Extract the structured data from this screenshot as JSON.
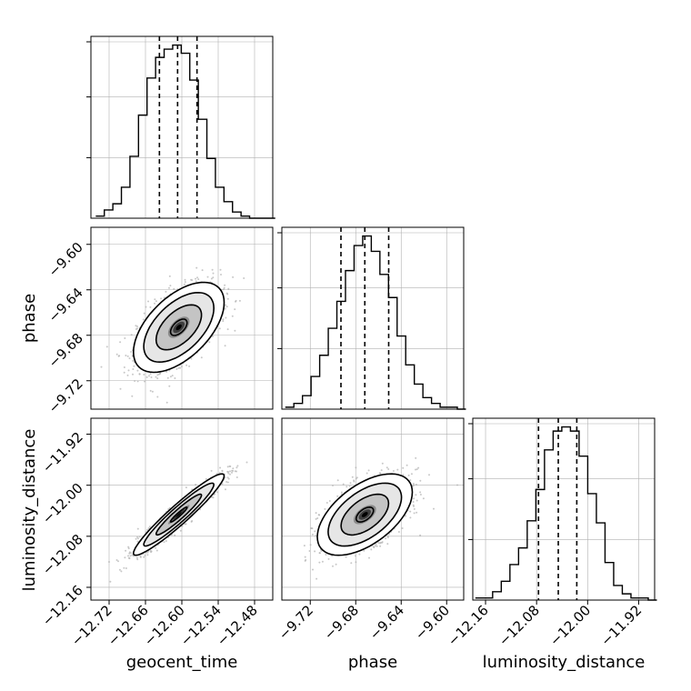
{
  "chart_data": {
    "type": "corner",
    "parameters": [
      "geocent_time",
      "phase",
      "luminosity_distance"
    ],
    "labels": {
      "geocent_time": "geocent_time",
      "phase": "phase",
      "luminosity_distance": "luminosity_distance"
    },
    "ranges": {
      "geocent_time": [
        -12.75,
        -12.45
      ],
      "phase": [
        -9.745,
        -9.585
      ],
      "luminosity_distance": [
        -12.18,
        -11.895
      ]
    },
    "ticks": {
      "geocent_time": [
        "−12.72",
        "−12.66",
        "−12.60",
        "−12.54",
        "−12.48"
      ],
      "phase": [
        "−9.72",
        "−9.68",
        "−9.64",
        "−9.60"
      ],
      "luminosity_distance": [
        "−12.16",
        "−12.08",
        "−12.00",
        "−11.92"
      ]
    },
    "tick_values": {
      "geocent_time": [
        -12.72,
        -12.66,
        -12.6,
        -12.54,
        -12.48
      ],
      "phase": [
        -9.72,
        -9.68,
        -9.64,
        -9.6
      ],
      "luminosity_distance": [
        -12.16,
        -12.08,
        -12.0,
        -11.92
      ]
    },
    "histograms": {
      "geocent_time": {
        "edges_start": -12.742,
        "bin_width": 0.0141,
        "counts": [
          1,
          4,
          7,
          15,
          30,
          50,
          68,
          78,
          82,
          84,
          80,
          67,
          48,
          29,
          15,
          8,
          3,
          1,
          0,
          0,
          0
        ]
      },
      "phase": {
        "edges_start": -9.742,
        "bin_width": 0.00757,
        "counts": [
          1,
          3,
          7,
          17,
          28,
          42,
          56,
          72,
          85,
          90,
          82,
          70,
          58,
          38,
          23,
          13,
          6,
          3,
          1,
          1,
          0
        ]
      },
      "luminosity_distance": {
        "edges_start": -12.176,
        "bin_width": 0.01355,
        "counts": [
          1,
          1,
          4,
          9,
          17,
          25,
          38,
          53,
          72,
          81,
          83,
          81,
          69,
          51,
          37,
          18,
          7,
          3,
          1,
          1,
          0
        ]
      }
    },
    "quantiles": {
      "geocent_time": [
        -12.637,
        -12.607,
        -12.575
      ],
      "phase": [
        -9.693,
        -9.672,
        -9.651
      ],
      "luminosity_distance": [
        -12.077,
        -12.046,
        -12.017
      ]
    },
    "joint": {
      "phase_vs_geocent_time": {
        "mean": [
          -12.605,
          -9.673
        ],
        "sd": [
          0.034,
          0.018
        ],
        "rho": 0.55,
        "contours": [
          0.4,
          1.1,
          1.7,
          2.2
        ]
      },
      "luminosity_distance_vs_geocent_time": {
        "mean": [
          -12.605,
          -12.046
        ],
        "sd": [
          0.034,
          0.029
        ],
        "rho": 0.95,
        "contours": [
          0.4,
          1.1,
          1.7,
          2.2
        ]
      },
      "luminosity_distance_vs_phase": {
        "mean": [
          -9.672,
          -12.046
        ],
        "sd": [
          0.019,
          0.029
        ],
        "rho": 0.55,
        "contours": [
          0.4,
          1.1,
          1.7,
          2.2
        ]
      }
    },
    "grid": true,
    "colors": {
      "line": "#000000",
      "scatter": "#b0b0b0",
      "grid": "#b0b0b0",
      "density_dark": "#000000"
    }
  }
}
